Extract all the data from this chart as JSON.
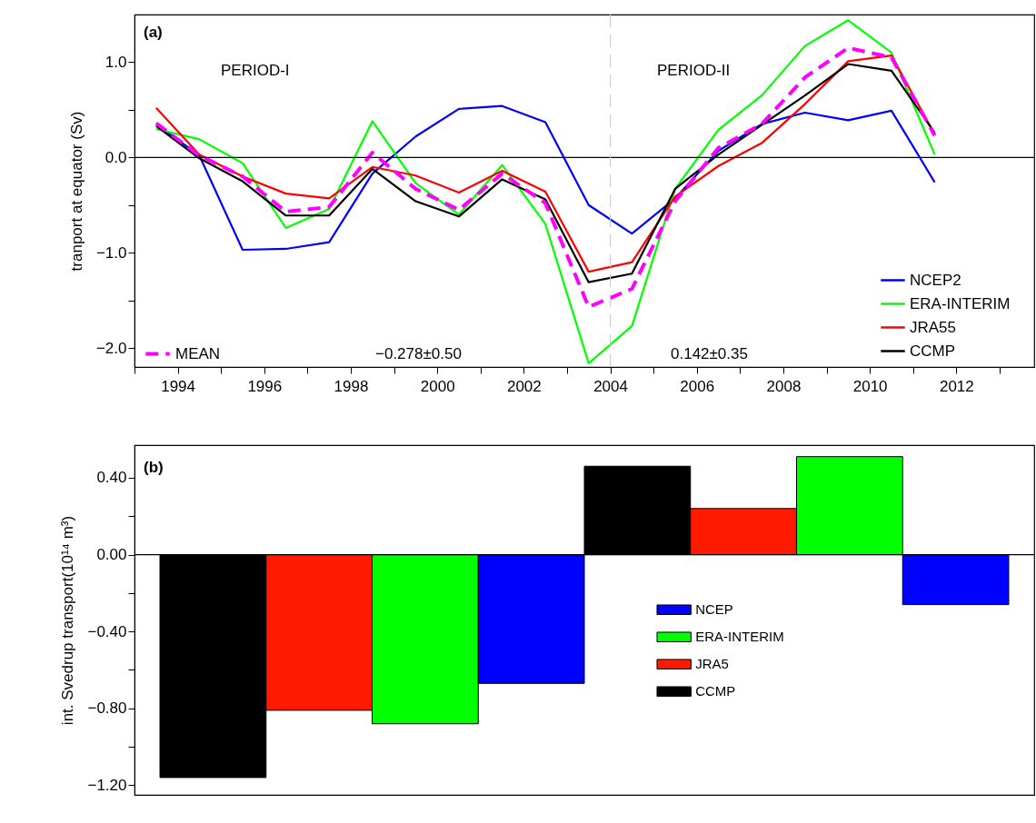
{
  "chart_data": [
    {
      "type": "line",
      "ylabel": "tranport at equator (Sv)",
      "legend": "bottom right",
      "x": [
        1993.5,
        1994.5,
        1995.5,
        1996.5,
        1997.5,
        1998.5,
        1999.5,
        2000.5,
        2001.5,
        2002.5,
        2003.5,
        2004.5,
        2005.5,
        2006.5,
        2007.5,
        2008.5,
        2009.5,
        2010.5,
        2011.5
      ],
      "series": [
        {
          "name": "NCEP2",
          "color": "#0000ff",
          "values": [
            0.35,
            0.02,
            -0.97,
            -0.96,
            -0.89,
            -0.17,
            0.22,
            0.51,
            0.54,
            0.37,
            -0.5,
            -0.8,
            -0.43,
            0.07,
            0.35,
            0.47,
            0.39,
            0.49,
            -0.26
          ]
        },
        {
          "name": "ERA-INTERIM",
          "color": "#00ff00",
          "values": [
            0.3,
            0.19,
            -0.06,
            -0.74,
            -0.54,
            0.38,
            -0.27,
            -0.6,
            -0.08,
            -0.7,
            -2.16,
            -1.77,
            -0.33,
            0.29,
            0.65,
            1.17,
            1.44,
            1.1,
            0.03
          ]
        },
        {
          "name": "JRA55",
          "color": "#ff0000",
          "values": [
            0.52,
            0.03,
            -0.2,
            -0.38,
            -0.43,
            -0.1,
            -0.19,
            -0.37,
            -0.14,
            -0.36,
            -1.2,
            -1.1,
            -0.41,
            -0.09,
            0.15,
            0.56,
            1.01,
            1.07,
            0.24
          ]
        },
        {
          "name": "CCMP",
          "color": "#000000",
          "values": [
            0.33,
            -0.01,
            -0.25,
            -0.61,
            -0.61,
            -0.12,
            -0.46,
            -0.62,
            -0.23,
            -0.44,
            -1.31,
            -1.22,
            -0.33,
            0.03,
            0.34,
            0.65,
            0.98,
            0.91,
            0.26
          ]
        },
        {
          "name": "MEAN",
          "color": "#ff00ff",
          "line_style": "dashed",
          "values": [
            0.36,
            0.02,
            -0.2,
            -0.57,
            -0.52,
            0.05,
            -0.33,
            -0.55,
            -0.17,
            -0.48,
            -1.57,
            -1.38,
            -0.46,
            0.1,
            0.35,
            0.84,
            1.15,
            1.05,
            0.23
          ]
        }
      ],
      "xlim": [
        1993,
        2013.8
      ],
      "xticks": [
        {
          "value": 1993,
          "label": null
        },
        1994,
        {
          "value": 1995,
          "label": null
        },
        1996,
        {
          "value": 1997,
          "label": null
        },
        1998,
        {
          "value": 1999,
          "label": null
        },
        2000,
        {
          "value": 2001,
          "label": null
        },
        2002,
        {
          "value": 2003,
          "label": null
        },
        2004,
        {
          "value": 2005,
          "label": null
        },
        2006,
        {
          "value": 2007,
          "label": null
        },
        2008,
        {
          "value": 2009,
          "label": null
        },
        2010,
        {
          "value": 2011,
          "label": null
        },
        2012,
        {
          "value": 2013,
          "label": null
        }
      ],
      "ylim": [
        -2.2,
        1.5
      ],
      "yticks": [
        {
          "value": -2,
          "label": "−2.0"
        },
        {
          "value": -1.5,
          "label": null
        },
        {
          "value": -1,
          "label": "−1.0"
        },
        {
          "value": -0.5,
          "label": null
        },
        {
          "value": 0,
          "label": "0.0"
        },
        {
          "value": 0.5,
          "label": null
        },
        {
          "value": 1,
          "label": "1.0"
        }
      ],
      "ref_lines": [
        {
          "axis": "y",
          "value": 0,
          "color": "#000000"
        },
        {
          "axis": "x",
          "value": 2004,
          "color": "#cccccc",
          "line_style": "dashed"
        }
      ],
      "annotations": [
        "(a)",
        "PERIOD-I",
        "PERIOD-II",
        "−0.278±0.50",
        "0.142±0.35"
      ]
    },
    {
      "type": "bar",
      "ylabel": "int. Svedrup transport(10¹⁴ m³)",
      "legend": "right",
      "tick_labels": "y",
      "categories": [
        null,
        null
      ],
      "series": [
        {
          "name": "CCMP",
          "color": "#000000",
          "values": [
            -1.16,
            0.46
          ]
        },
        {
          "name": "JRA5",
          "color": "#ff1a00",
          "values": [
            -0.81,
            0.24
          ]
        },
        {
          "name": "ERA-INTERIM",
          "color": "#00ff00",
          "values": [
            -0.88,
            0.51
          ]
        },
        {
          "name": "NCEP",
          "color": "#0000ff",
          "values": [
            -0.67,
            -0.26
          ]
        }
      ],
      "ylim": [
        -1.25,
        0.57
      ],
      "yticks": [
        {
          "value": -1.2,
          "label": "−1.20"
        },
        {
          "value": -1,
          "label": null
        },
        {
          "value": -0.8,
          "label": "−0.80"
        },
        {
          "value": -0.6,
          "label": null
        },
        {
          "value": -0.4,
          "label": "−0.40"
        },
        {
          "value": -0.2,
          "label": null
        },
        {
          "value": 0,
          "label": "0.00"
        },
        {
          "value": 0.2,
          "label": null
        },
        {
          "value": 0.4,
          "label": "0.40"
        }
      ],
      "ref_lines": [
        {
          "axis": "y",
          "value": 0,
          "color": "#000000"
        }
      ],
      "annotations": [
        "(b)"
      ]
    }
  ]
}
